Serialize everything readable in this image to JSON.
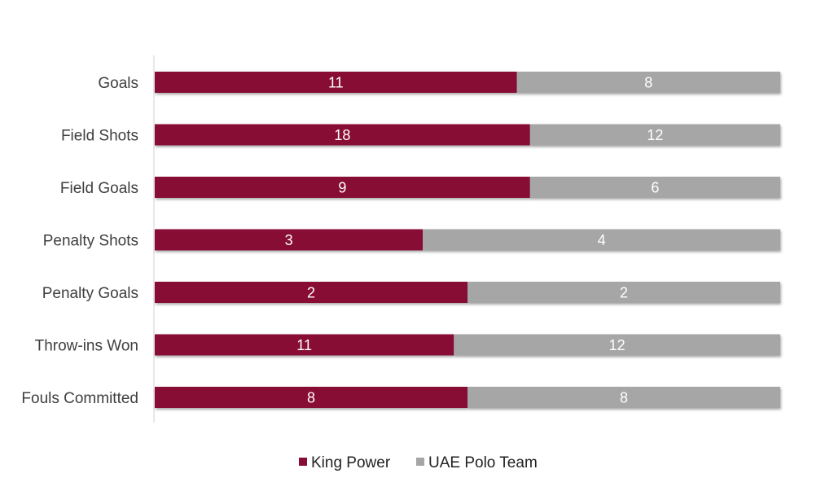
{
  "chart_data": {
    "type": "bar",
    "orientation": "horizontal",
    "stacking": "percent",
    "categories": [
      "Goals",
      "Field Shots",
      "Field Goals",
      "Penalty Shots",
      "Penalty Goals",
      "Throw-ins Won",
      "Fouls Committed"
    ],
    "series": [
      {
        "name": "King Power",
        "values": [
          11,
          18,
          9,
          3,
          2,
          11,
          8
        ],
        "color": "#870c36"
      },
      {
        "name": "UAE Polo Team",
        "values": [
          8,
          12,
          6,
          4,
          2,
          12,
          8
        ],
        "color": "#a6a6a6"
      }
    ],
    "legend_position": "bottom",
    "grid": false
  }
}
